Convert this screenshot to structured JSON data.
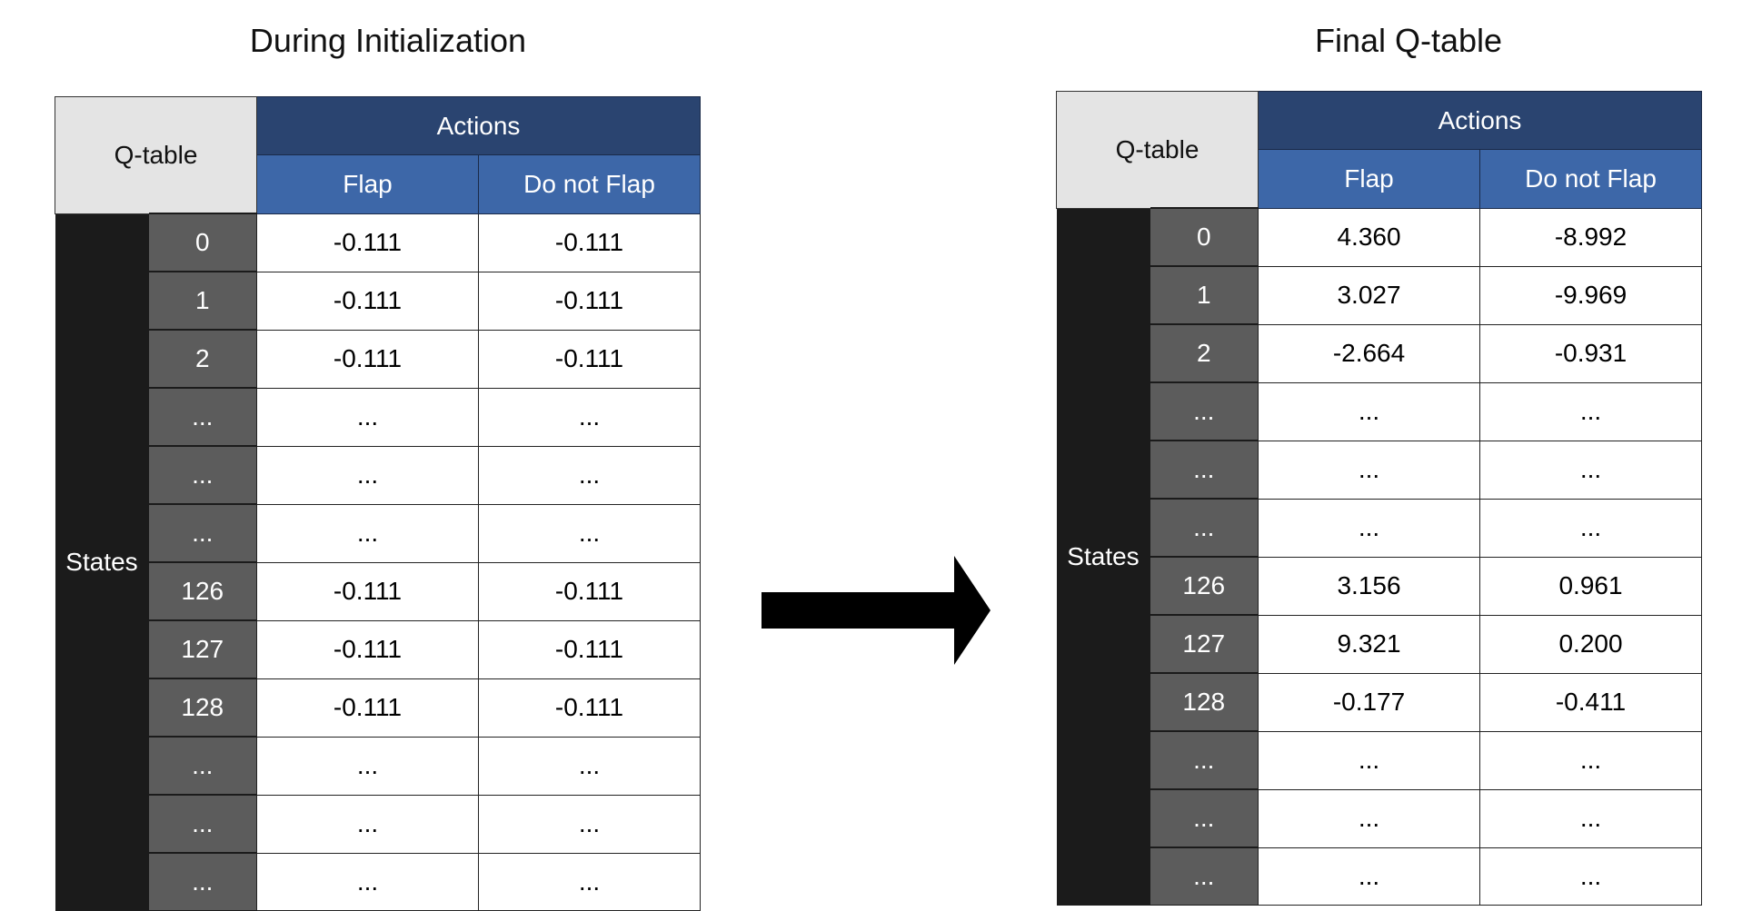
{
  "left": {
    "title": "During Initialization",
    "corner": "Q-table",
    "actions_header": "Actions",
    "columns": [
      "Flap",
      "Do not Flap"
    ],
    "states_label": "States",
    "rows": [
      {
        "state": "0",
        "values": [
          "-0.111",
          "-0.111"
        ]
      },
      {
        "state": "1",
        "values": [
          "-0.111",
          "-0.111"
        ]
      },
      {
        "state": "2",
        "values": [
          "-0.111",
          "-0.111"
        ]
      },
      {
        "state": "...",
        "values": [
          "...",
          "..."
        ]
      },
      {
        "state": "...",
        "values": [
          "...",
          "..."
        ]
      },
      {
        "state": "...",
        "values": [
          "...",
          "..."
        ]
      },
      {
        "state": "126",
        "values": [
          "-0.111",
          "-0.111"
        ]
      },
      {
        "state": "127",
        "values": [
          "-0.111",
          "-0.111"
        ]
      },
      {
        "state": "128",
        "values": [
          "-0.111",
          "-0.111"
        ]
      },
      {
        "state": "...",
        "values": [
          "...",
          "..."
        ]
      },
      {
        "state": "...",
        "values": [
          "...",
          "..."
        ]
      },
      {
        "state": "...",
        "values": [
          "...",
          "..."
        ]
      }
    ]
  },
  "right": {
    "title": "Final Q-table",
    "corner": "Q-table",
    "actions_header": "Actions",
    "columns": [
      "Flap",
      "Do not Flap"
    ],
    "states_label": "States",
    "rows": [
      {
        "state": "0",
        "values": [
          "4.360",
          "-8.992"
        ]
      },
      {
        "state": "1",
        "values": [
          "3.027",
          "-9.969"
        ]
      },
      {
        "state": "2",
        "values": [
          "-2.664",
          "-0.931"
        ]
      },
      {
        "state": "...",
        "values": [
          "...",
          "..."
        ]
      },
      {
        "state": "...",
        "values": [
          "...",
          "..."
        ]
      },
      {
        "state": "...",
        "values": [
          "...",
          "..."
        ]
      },
      {
        "state": "126",
        "values": [
          "3.156",
          "0.961"
        ]
      },
      {
        "state": "127",
        "values": [
          "9.321",
          "0.200"
        ]
      },
      {
        "state": "128",
        "values": [
          "-0.177",
          "-0.411"
        ]
      },
      {
        "state": "...",
        "values": [
          "...",
          "..."
        ]
      },
      {
        "state": "...",
        "values": [
          "...",
          "..."
        ]
      },
      {
        "state": "...",
        "values": [
          "...",
          "..."
        ]
      }
    ]
  },
  "arrow_icon": "right-arrow-icon"
}
